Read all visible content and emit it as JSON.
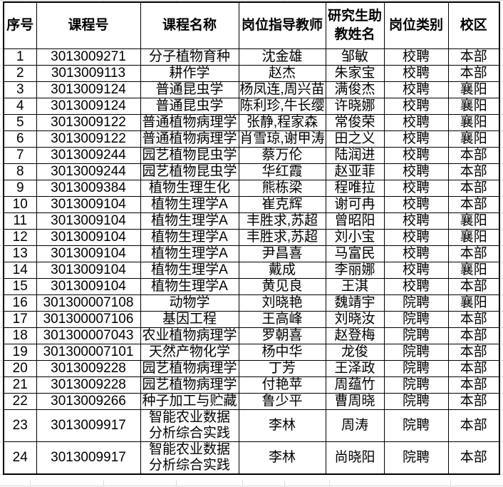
{
  "colors": {
    "table_border": "#000000",
    "cell_border": "#000000",
    "background": "#ffffff",
    "text": "#000000",
    "outer_gridline": "#d9d9d9"
  },
  "table": {
    "columns": [
      {
        "key": "index",
        "label": "序号"
      },
      {
        "key": "course_id",
        "label": "课程号"
      },
      {
        "key": "course_name",
        "label": "课程名称"
      },
      {
        "key": "supervisor",
        "label": "岗位指导教师"
      },
      {
        "key": "ta_name",
        "label": "研究生助\n教姓名"
      },
      {
        "key": "category",
        "label": "岗位类别"
      },
      {
        "key": "campus",
        "label": "校区"
      }
    ],
    "rows": [
      {
        "index": "1",
        "course_id": "3013009271",
        "course_name": "分子植物育种",
        "supervisor": "沈金雄",
        "ta_name": "邹敏",
        "category": "校聘",
        "campus": "本部"
      },
      {
        "index": "2",
        "course_id": "3013009113",
        "course_name": "耕作学",
        "supervisor": "赵杰",
        "ta_name": "朱家宝",
        "category": "校聘",
        "campus": "本部"
      },
      {
        "index": "3",
        "course_id": "3013009124",
        "course_name": "普通昆虫学",
        "supervisor": "杨凤连,周兴苗",
        "ta_name": "满俊杰",
        "category": "校聘",
        "campus": "襄阳"
      },
      {
        "index": "4",
        "course_id": "3013009124",
        "course_name": "普通昆虫学",
        "supervisor": "陈利珍,牛长缨",
        "ta_name": "许晓娜",
        "category": "校聘",
        "campus": "襄阳"
      },
      {
        "index": "5",
        "course_id": "3013009122",
        "course_name": "普通植物病理学",
        "supervisor": "张静,程家森",
        "ta_name": "常俊荣",
        "category": "校聘",
        "campus": "襄阳"
      },
      {
        "index": "6",
        "course_id": "3013009122",
        "course_name": "普通植物病理学",
        "supervisor": "肖雪琼,谢甲涛",
        "ta_name": "田之义",
        "category": "校聘",
        "campus": "襄阳"
      },
      {
        "index": "7",
        "course_id": "3013009244",
        "course_name": "园艺植物昆虫学",
        "supervisor": "蔡万伦",
        "ta_name": "陆润进",
        "category": "校聘",
        "campus": "本部"
      },
      {
        "index": "8",
        "course_id": "3013009244",
        "course_name": "园艺植物昆虫学",
        "supervisor": "华红霞",
        "ta_name": "赵亚菲",
        "category": "校聘",
        "campus": "本部"
      },
      {
        "index": "9",
        "course_id": "3013009384",
        "course_name": "植物生理生化",
        "supervisor": "熊栋梁",
        "ta_name": "程唯拉",
        "category": "校聘",
        "campus": "本部"
      },
      {
        "index": "10",
        "course_id": "3013009104",
        "course_name": "植物生理学A",
        "supervisor": "崔克辉",
        "ta_name": "谢可冉",
        "category": "校聘",
        "campus": "本部"
      },
      {
        "index": "11",
        "course_id": "3013009104",
        "course_name": "植物生理学A",
        "supervisor": "丰胜求,苏超",
        "ta_name": "曾昭阳",
        "category": "校聘",
        "campus": "襄阳"
      },
      {
        "index": "12",
        "course_id": "3013009104",
        "course_name": "植物生理学A",
        "supervisor": "丰胜求,苏超",
        "ta_name": "刘小宝",
        "category": "校聘",
        "campus": "襄阳"
      },
      {
        "index": "13",
        "course_id": "3013009104",
        "course_name": "植物生理学A",
        "supervisor": "尹昌喜",
        "ta_name": "马富民",
        "category": "校聘",
        "campus": "本部"
      },
      {
        "index": "14",
        "course_id": "3013009104",
        "course_name": "植物生理学A",
        "supervisor": "戴成",
        "ta_name": "李丽娜",
        "category": "校聘",
        "campus": "襄阳"
      },
      {
        "index": "15",
        "course_id": "3013009104",
        "course_name": "植物生理学A",
        "supervisor": "黄见良",
        "ta_name": "王淇",
        "category": "校聘",
        "campus": "本部"
      },
      {
        "index": "16",
        "course_id": "301300007108",
        "course_name": "动物学",
        "supervisor": "刘晓艳",
        "ta_name": "魏靖宇",
        "category": "院聘",
        "campus": "襄阳"
      },
      {
        "index": "17",
        "course_id": "301300007106",
        "course_name": "基因工程",
        "supervisor": "王高峰",
        "ta_name": "刘晓汝",
        "category": "院聘",
        "campus": "本部"
      },
      {
        "index": "18",
        "course_id": "301300007043",
        "course_name": "农业植物病理学",
        "supervisor": "罗朝喜",
        "ta_name": "赵登梅",
        "category": "院聘",
        "campus": "本部"
      },
      {
        "index": "19",
        "course_id": "301300007101",
        "course_name": "天然产物化学",
        "supervisor": "杨中华",
        "ta_name": "龙俊",
        "category": "院聘",
        "campus": "本部"
      },
      {
        "index": "20",
        "course_id": "3013009228",
        "course_name": "园艺植物病理学",
        "supervisor": "丁芳",
        "ta_name": "王泽政",
        "category": "院聘",
        "campus": "本部"
      },
      {
        "index": "21",
        "course_id": "3013009228",
        "course_name": "园艺植物病理学",
        "supervisor": "付艳苹",
        "ta_name": "周蕴竹",
        "category": "院聘",
        "campus": "本部"
      },
      {
        "index": "22",
        "course_id": "3013009266",
        "course_name": "种子加工与贮藏",
        "supervisor": "鲁少平",
        "ta_name": "曹周晓",
        "category": "院聘",
        "campus": "本部"
      },
      {
        "index": "23",
        "course_id": "3013009917",
        "course_name": "智能农业数据\n分析综合实践",
        "supervisor": "李林",
        "ta_name": "周涛",
        "category": "院聘",
        "campus": "本部"
      },
      {
        "index": "24",
        "course_id": "3013009917",
        "course_name": "智能农业数据\n分析综合实践",
        "supervisor": "李林",
        "ta_name": "尚晓阳",
        "category": "院聘",
        "campus": "本部"
      }
    ]
  }
}
